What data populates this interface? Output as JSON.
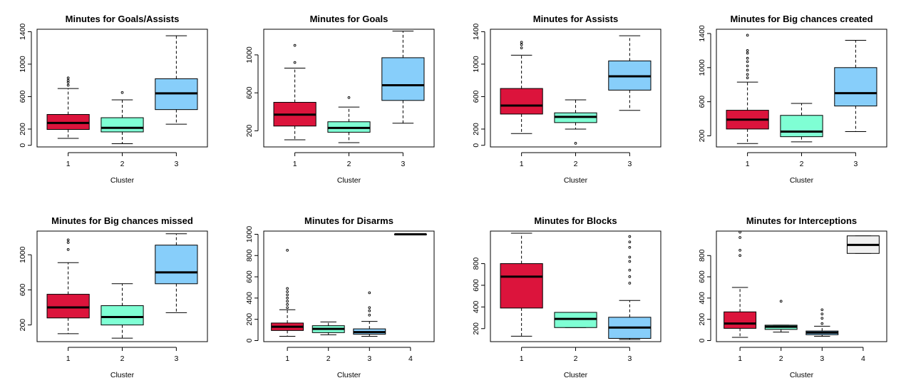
{
  "colors": {
    "cluster_1": "#dc143c",
    "cluster_2": "#7fffd4",
    "cluster_3": "#87cefa",
    "cluster_4": "#f0f0f0",
    "median_line": "#000000",
    "frame": "#000000"
  },
  "chart_data": [
    {
      "type": "boxplot",
      "title": "Minutes for Goals/Assists",
      "xlabel": "Cluster",
      "ylim": [
        -20,
        1430
      ],
      "yticks": [
        0,
        200,
        600,
        1000,
        1400
      ],
      "categories": [
        "1",
        "2",
        "3"
      ],
      "boxes": [
        {
          "cluster": "1",
          "whisker_low": 85,
          "q1": 195,
          "median": 275,
          "q3": 380,
          "whisker_high": 700,
          "outliers": [
            740,
            775,
            800,
            830
          ]
        },
        {
          "cluster": "2",
          "whisker_low": 20,
          "q1": 165,
          "median": 215,
          "q3": 340,
          "whisker_high": 560,
          "outliers": [
            650
          ]
        },
        {
          "cluster": "3",
          "whisker_low": 260,
          "q1": 440,
          "median": 640,
          "q3": 820,
          "whisker_high": 1350,
          "outliers": []
        }
      ]
    },
    {
      "type": "boxplot",
      "title": "Minutes for Goals",
      "xlabel": "Cluster",
      "ylim": [
        30,
        1270
      ],
      "yticks": [
        200,
        600,
        1000
      ],
      "categories": [
        "1",
        "2",
        "3"
      ],
      "boxes": [
        {
          "cluster": "1",
          "whisker_low": 105,
          "q1": 250,
          "median": 370,
          "q3": 500,
          "whisker_high": 860,
          "outliers": [
            920,
            1100
          ]
        },
        {
          "cluster": "2",
          "whisker_low": 75,
          "q1": 185,
          "median": 230,
          "q3": 295,
          "whisker_high": 450,
          "outliers": [
            550
          ]
        },
        {
          "cluster": "3",
          "whisker_low": 280,
          "q1": 520,
          "median": 680,
          "q3": 970,
          "whisker_high": 1250,
          "outliers": []
        }
      ]
    },
    {
      "type": "boxplot",
      "title": "Minutes for Assists",
      "xlabel": "Cluster",
      "ylim": [
        -20,
        1430
      ],
      "yticks": [
        0,
        200,
        600,
        1000,
        1400
      ],
      "categories": [
        "1",
        "2",
        "3"
      ],
      "boxes": [
        {
          "cluster": "1",
          "whisker_low": 145,
          "q1": 385,
          "median": 490,
          "q3": 700,
          "whisker_high": 1110,
          "outliers": [
            1200,
            1240,
            1270
          ]
        },
        {
          "cluster": "2",
          "whisker_low": 200,
          "q1": 280,
          "median": 350,
          "q3": 400,
          "whisker_high": 560,
          "outliers": [
            25
          ]
        },
        {
          "cluster": "3",
          "whisker_low": 430,
          "q1": 680,
          "median": 850,
          "q3": 1040,
          "whisker_high": 1350,
          "outliers": []
        }
      ]
    },
    {
      "type": "boxplot",
      "title": "Minutes for Big chances created",
      "xlabel": "Cluster",
      "ylim": [
        70,
        1450
      ],
      "yticks": [
        200,
        600,
        1000,
        1400
      ],
      "categories": [
        "1",
        "2",
        "3"
      ],
      "boxes": [
        {
          "cluster": "1",
          "whisker_low": 110,
          "q1": 280,
          "median": 390,
          "q3": 500,
          "whisker_high": 830,
          "outliers": [
            880,
            920,
            970,
            1020,
            1070,
            1110,
            1170,
            1200,
            1380
          ]
        },
        {
          "cluster": "2",
          "whisker_low": 130,
          "q1": 190,
          "median": 250,
          "q3": 440,
          "whisker_high": 580,
          "outliers": []
        },
        {
          "cluster": "3",
          "whisker_low": 250,
          "q1": 550,
          "median": 700,
          "q3": 1000,
          "whisker_high": 1320,
          "outliers": []
        }
      ]
    },
    {
      "type": "boxplot",
      "title": "Minutes for Big chances missed",
      "xlabel": "Cluster",
      "ylim": [
        10,
        1270
      ],
      "yticks": [
        200,
        600,
        1000
      ],
      "categories": [
        "1",
        "2",
        "3"
      ],
      "boxes": [
        {
          "cluster": "1",
          "whisker_low": 100,
          "q1": 280,
          "median": 400,
          "q3": 550,
          "whisker_high": 910,
          "outliers": [
            1060,
            1140,
            1170
          ]
        },
        {
          "cluster": "2",
          "whisker_low": 50,
          "q1": 200,
          "median": 290,
          "q3": 420,
          "whisker_high": 670,
          "outliers": []
        },
        {
          "cluster": "3",
          "whisker_low": 340,
          "q1": 670,
          "median": 800,
          "q3": 1110,
          "whisker_high": 1240,
          "outliers": []
        }
      ]
    },
    {
      "type": "boxplot",
      "title": "Minutes for Disarms",
      "xlabel": "Cluster",
      "ylim": [
        -10,
        1030
      ],
      "yticks": [
        0,
        200,
        400,
        600,
        800,
        1000
      ],
      "categories": [
        "1",
        "2",
        "3",
        "4"
      ],
      "boxes": [
        {
          "cluster": "1",
          "whisker_low": 40,
          "q1": 95,
          "median": 130,
          "q3": 165,
          "whisker_high": 290,
          "outliers": [
            310,
            340,
            370,
            400,
            430,
            460,
            490,
            850
          ]
        },
        {
          "cluster": "2",
          "whisker_low": 55,
          "q1": 75,
          "median": 110,
          "q3": 140,
          "whisker_high": 175,
          "outliers": []
        },
        {
          "cluster": "3",
          "whisker_low": 40,
          "q1": 60,
          "median": 80,
          "q3": 110,
          "whisker_high": 180,
          "outliers": [
            240,
            280,
            310,
            450
          ]
        },
        {
          "cluster": "4",
          "whisker_low": 1000,
          "q1": 1000,
          "median": 1000,
          "q3": 1000,
          "whisker_high": 1000,
          "outliers": []
        }
      ]
    },
    {
      "type": "boxplot",
      "title": "Minutes for Blocks",
      "xlabel": "Cluster",
      "ylim": [
        80,
        1100
      ],
      "yticks": [
        200,
        400,
        600,
        800
      ],
      "categories": [
        "1",
        "2",
        "3"
      ],
      "boxes": [
        {
          "cluster": "1",
          "whisker_low": 130,
          "q1": 390,
          "median": 680,
          "q3": 800,
          "whisker_high": 1080,
          "outliers": []
        },
        {
          "cluster": "2",
          "whisker_low": 210,
          "q1": 210,
          "median": 290,
          "q3": 350,
          "whisker_high": 350,
          "outliers": []
        },
        {
          "cluster": "3",
          "whisker_low": 100,
          "q1": 110,
          "median": 210,
          "q3": 305,
          "whisker_high": 460,
          "outliers": [
            620,
            680,
            740,
            820,
            860,
            950,
            1000,
            1050
          ]
        }
      ]
    },
    {
      "type": "boxplot",
      "title": "Minutes for Interceptions",
      "xlabel": "Cluster",
      "ylim": [
        -10,
        1030
      ],
      "yticks": [
        0,
        200,
        400,
        600,
        800
      ],
      "categories": [
        "1",
        "2",
        "3",
        "4"
      ],
      "boxes": [
        {
          "cluster": "1",
          "whisker_low": 30,
          "q1": 115,
          "median": 160,
          "q3": 270,
          "whisker_high": 500,
          "outliers": [
            800,
            850,
            970,
            1020
          ]
        },
        {
          "cluster": "2",
          "whisker_low": 80,
          "q1": 105,
          "median": 130,
          "q3": 145,
          "whisker_high": 145,
          "outliers": [
            370
          ]
        },
        {
          "cluster": "3",
          "whisker_low": 40,
          "q1": 55,
          "median": 75,
          "q3": 90,
          "whisker_high": 135,
          "outliers": [
            160,
            210,
            250,
            290
          ]
        },
        {
          "cluster": "4",
          "whisker_low": 820,
          "q1": 820,
          "median": 900,
          "q3": 985,
          "whisker_high": 985,
          "outliers": []
        }
      ]
    }
  ]
}
